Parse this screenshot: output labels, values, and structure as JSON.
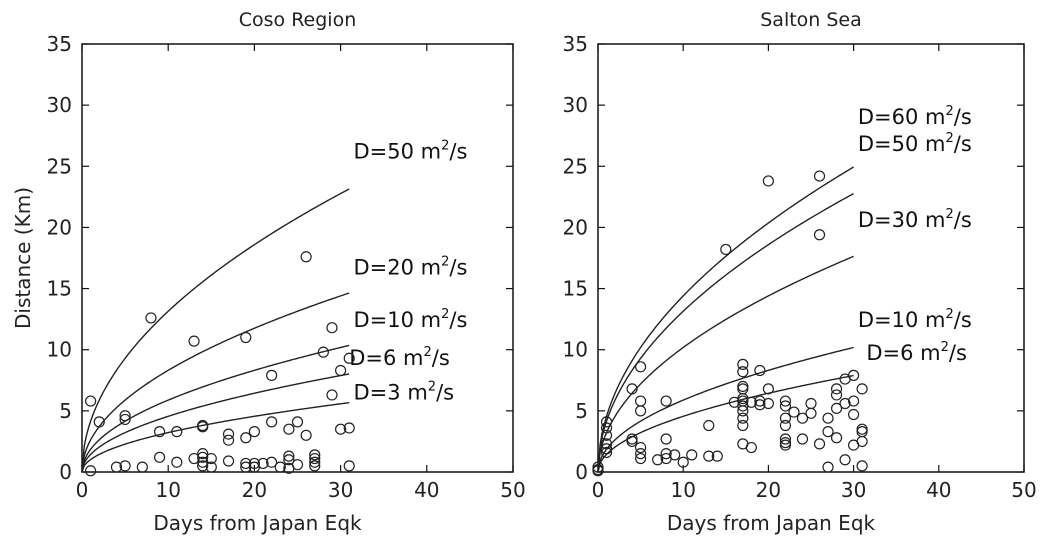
{
  "chart_data": [
    {
      "type": "scatter",
      "title": "Coso Region",
      "xlabel": "Days from Japan Eqk",
      "ylabel": "Distance (Km)",
      "xlim": [
        0,
        50
      ],
      "ylim": [
        0,
        35
      ],
      "xticks": [
        0,
        10,
        20,
        30,
        40,
        50
      ],
      "yticks": [
        0,
        5,
        10,
        15,
        20,
        25,
        30,
        35
      ],
      "x_tick_labels": [
        "0",
        "10",
        "20",
        "30",
        "40",
        "50"
      ],
      "y_tick_labels": [
        "0",
        "5",
        "10",
        "15",
        "20",
        "25",
        "30",
        "35"
      ],
      "grid": false,
      "curve_unit": "m",
      "curve_unit_exp": "2",
      "curve_unit_tail": "/s",
      "curves": [
        {
          "label": "D=50",
          "D": 50,
          "x_end": 31
        },
        {
          "label": "D=20",
          "D": 20,
          "x_end": 31
        },
        {
          "label": "D=10",
          "D": 10,
          "x_end": 31
        },
        {
          "label": "D=6",
          "D": 6,
          "x_end": 31
        },
        {
          "label": "D=3",
          "D": 3,
          "x_end": 31
        }
      ],
      "points": [
        [
          1,
          5.8
        ],
        [
          1,
          0.1
        ],
        [
          2,
          4.1
        ],
        [
          4,
          0.4
        ],
        [
          5,
          4.6
        ],
        [
          5,
          4.3
        ],
        [
          5,
          0.5
        ],
        [
          7,
          0.4
        ],
        [
          8,
          12.6
        ],
        [
          9,
          3.3
        ],
        [
          9,
          1.2
        ],
        [
          11,
          3.3
        ],
        [
          11,
          0.8
        ],
        [
          13,
          10.7
        ],
        [
          13,
          1.1
        ],
        [
          14,
          3.8
        ],
        [
          14,
          3.7
        ],
        [
          14,
          1.5
        ],
        [
          14,
          1.2
        ],
        [
          14,
          0.8
        ],
        [
          14,
          0.5
        ],
        [
          15,
          1.1
        ],
        [
          15,
          0.4
        ],
        [
          17,
          3.1
        ],
        [
          17,
          2.6
        ],
        [
          17,
          0.9
        ],
        [
          19,
          11.0
        ],
        [
          19,
          2.8
        ],
        [
          19,
          0.7
        ],
        [
          19,
          0.4
        ],
        [
          20,
          3.3
        ],
        [
          20,
          0.7
        ],
        [
          20,
          0.4
        ],
        [
          21,
          0.7
        ],
        [
          22,
          7.9
        ],
        [
          22,
          4.1
        ],
        [
          22,
          0.8
        ],
        [
          23,
          0.4
        ],
        [
          24,
          3.5
        ],
        [
          24,
          1.3
        ],
        [
          24,
          1.0
        ],
        [
          24,
          0.3
        ],
        [
          25,
          4.1
        ],
        [
          25,
          0.6
        ],
        [
          26,
          17.6
        ],
        [
          26,
          3.0
        ],
        [
          27,
          1.4
        ],
        [
          27,
          1.1
        ],
        [
          27,
          0.8
        ],
        [
          27,
          0.5
        ],
        [
          28,
          9.8
        ],
        [
          29,
          11.8
        ],
        [
          29,
          6.3
        ],
        [
          30,
          8.3
        ],
        [
          30,
          3.5
        ],
        [
          31,
          9.3
        ],
        [
          31,
          3.6
        ],
        [
          31,
          0.5
        ]
      ]
    },
    {
      "type": "scatter",
      "title": "Salton Sea",
      "xlabel": "Days from Japan Eqk",
      "ylabel": "",
      "xlim": [
        0,
        50
      ],
      "ylim": [
        0,
        35
      ],
      "xticks": [
        0,
        10,
        20,
        30,
        40,
        50
      ],
      "yticks": [
        0,
        5,
        10,
        15,
        20,
        25,
        30,
        35
      ],
      "x_tick_labels": [
        "0",
        "10",
        "20",
        "30",
        "40",
        "50"
      ],
      "y_tick_labels": [
        "0",
        "5",
        "10",
        "15",
        "20",
        "25",
        "30",
        "35"
      ],
      "grid": false,
      "curve_unit": "m",
      "curve_unit_exp": "2",
      "curve_unit_tail": "/s",
      "curves": [
        {
          "label": "D=60",
          "D": 60,
          "x_end": 30
        },
        {
          "label": "D=50",
          "D": 50,
          "x_end": 30
        },
        {
          "label": "D=30",
          "D": 30,
          "x_end": 30
        },
        {
          "label": "D=10",
          "D": 10,
          "x_end": 30
        },
        {
          "label": "D=6",
          "D": 6,
          "x_end": 30
        }
      ],
      "points": [
        [
          0,
          0.4
        ],
        [
          0,
          0.2
        ],
        [
          0,
          0.1
        ],
        [
          1,
          4.1
        ],
        [
          1,
          3.6
        ],
        [
          1,
          3.0
        ],
        [
          1,
          2.3
        ],
        [
          1,
          1.9
        ],
        [
          1,
          1.6
        ],
        [
          4,
          6.8
        ],
        [
          4,
          2.7
        ],
        [
          4,
          2.5
        ],
        [
          5,
          8.6
        ],
        [
          5,
          5.8
        ],
        [
          5,
          5.0
        ],
        [
          5,
          2.0
        ],
        [
          5,
          1.5
        ],
        [
          5,
          1.1
        ],
        [
          7,
          1.0
        ],
        [
          8,
          5.8
        ],
        [
          8,
          2.7
        ],
        [
          8,
          1.5
        ],
        [
          8,
          1.1
        ],
        [
          9,
          1.4
        ],
        [
          10,
          0.8
        ],
        [
          11,
          1.4
        ],
        [
          13,
          3.8
        ],
        [
          13,
          1.3
        ],
        [
          14,
          1.3
        ],
        [
          15,
          18.2
        ],
        [
          16,
          5.7
        ],
        [
          17,
          8.8
        ],
        [
          17,
          8.2
        ],
        [
          17,
          7.0
        ],
        [
          17,
          6.8
        ],
        [
          17,
          6.0
        ],
        [
          17,
          5.8
        ],
        [
          17,
          5.4
        ],
        [
          17,
          5.0
        ],
        [
          17,
          4.4
        ],
        [
          17,
          3.8
        ],
        [
          17,
          2.3
        ],
        [
          18,
          2.0
        ],
        [
          18,
          5.7
        ],
        [
          19,
          8.3
        ],
        [
          19,
          5.8
        ],
        [
          19,
          5.5
        ],
        [
          20,
          23.8
        ],
        [
          20,
          6.8
        ],
        [
          20,
          5.6
        ],
        [
          22,
          5.8
        ],
        [
          22,
          5.4
        ],
        [
          22,
          4.4
        ],
        [
          22,
          3.8
        ],
        [
          22,
          2.7
        ],
        [
          22,
          2.4
        ],
        [
          22,
          2.2
        ],
        [
          23,
          4.9
        ],
        [
          24,
          2.7
        ],
        [
          24,
          4.4
        ],
        [
          25,
          5.6
        ],
        [
          25,
          4.8
        ],
        [
          26,
          24.2
        ],
        [
          26,
          19.4
        ],
        [
          26,
          2.3
        ],
        [
          27,
          4.4
        ],
        [
          27,
          3.3
        ],
        [
          27,
          0.4
        ],
        [
          28,
          6.8
        ],
        [
          28,
          6.3
        ],
        [
          28,
          5.2
        ],
        [
          28,
          2.8
        ],
        [
          29,
          7.6
        ],
        [
          29,
          5.6
        ],
        [
          29,
          1.0
        ],
        [
          30,
          7.9
        ],
        [
          30,
          5.8
        ],
        [
          30,
          4.7
        ],
        [
          30,
          2.2
        ],
        [
          31,
          6.8
        ],
        [
          31,
          3.5
        ],
        [
          31,
          3.3
        ],
        [
          31,
          2.5
        ],
        [
          31,
          0.5
        ]
      ]
    }
  ]
}
